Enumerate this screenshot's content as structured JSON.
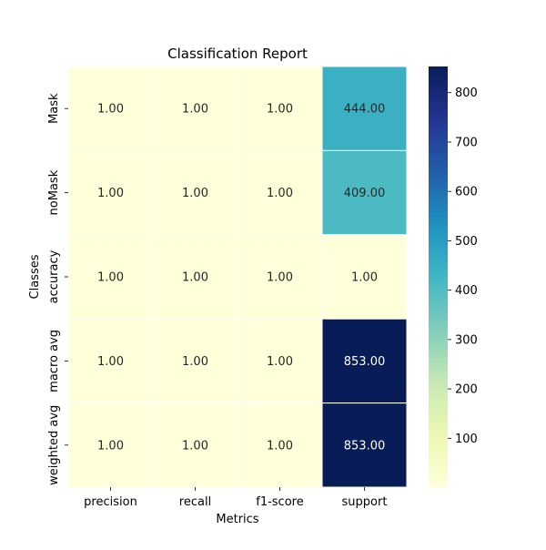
{
  "chart_data": {
    "type": "heatmap",
    "title": "Classification Report",
    "xlabel": "Metrics",
    "ylabel": "Classes",
    "columns": [
      "precision",
      "recall",
      "f1-score",
      "support"
    ],
    "rows": [
      "Mask",
      "noMask",
      "accuracy",
      "macro avg",
      "weighted avg"
    ],
    "values": [
      [
        1.0,
        1.0,
        1.0,
        444.0
      ],
      [
        1.0,
        1.0,
        1.0,
        409.0
      ],
      [
        1.0,
        1.0,
        1.0,
        1.0
      ],
      [
        1.0,
        1.0,
        1.0,
        853.0
      ],
      [
        1.0,
        1.0,
        1.0,
        853.0
      ]
    ],
    "cell_labels": [
      [
        "1.00",
        "1.00",
        "1.00",
        "444.00"
      ],
      [
        "1.00",
        "1.00",
        "1.00",
        "409.00"
      ],
      [
        "1.00",
        "1.00",
        "1.00",
        "1.00"
      ],
      [
        "1.00",
        "1.00",
        "1.00",
        "853.00"
      ],
      [
        "1.00",
        "1.00",
        "1.00",
        "853.00"
      ]
    ],
    "colormap": "YlGnBu",
    "vmin": 1.0,
    "vmax": 853.0,
    "colorbar_ticks": [
      100,
      200,
      300,
      400,
      500,
      600,
      700,
      800
    ]
  }
}
